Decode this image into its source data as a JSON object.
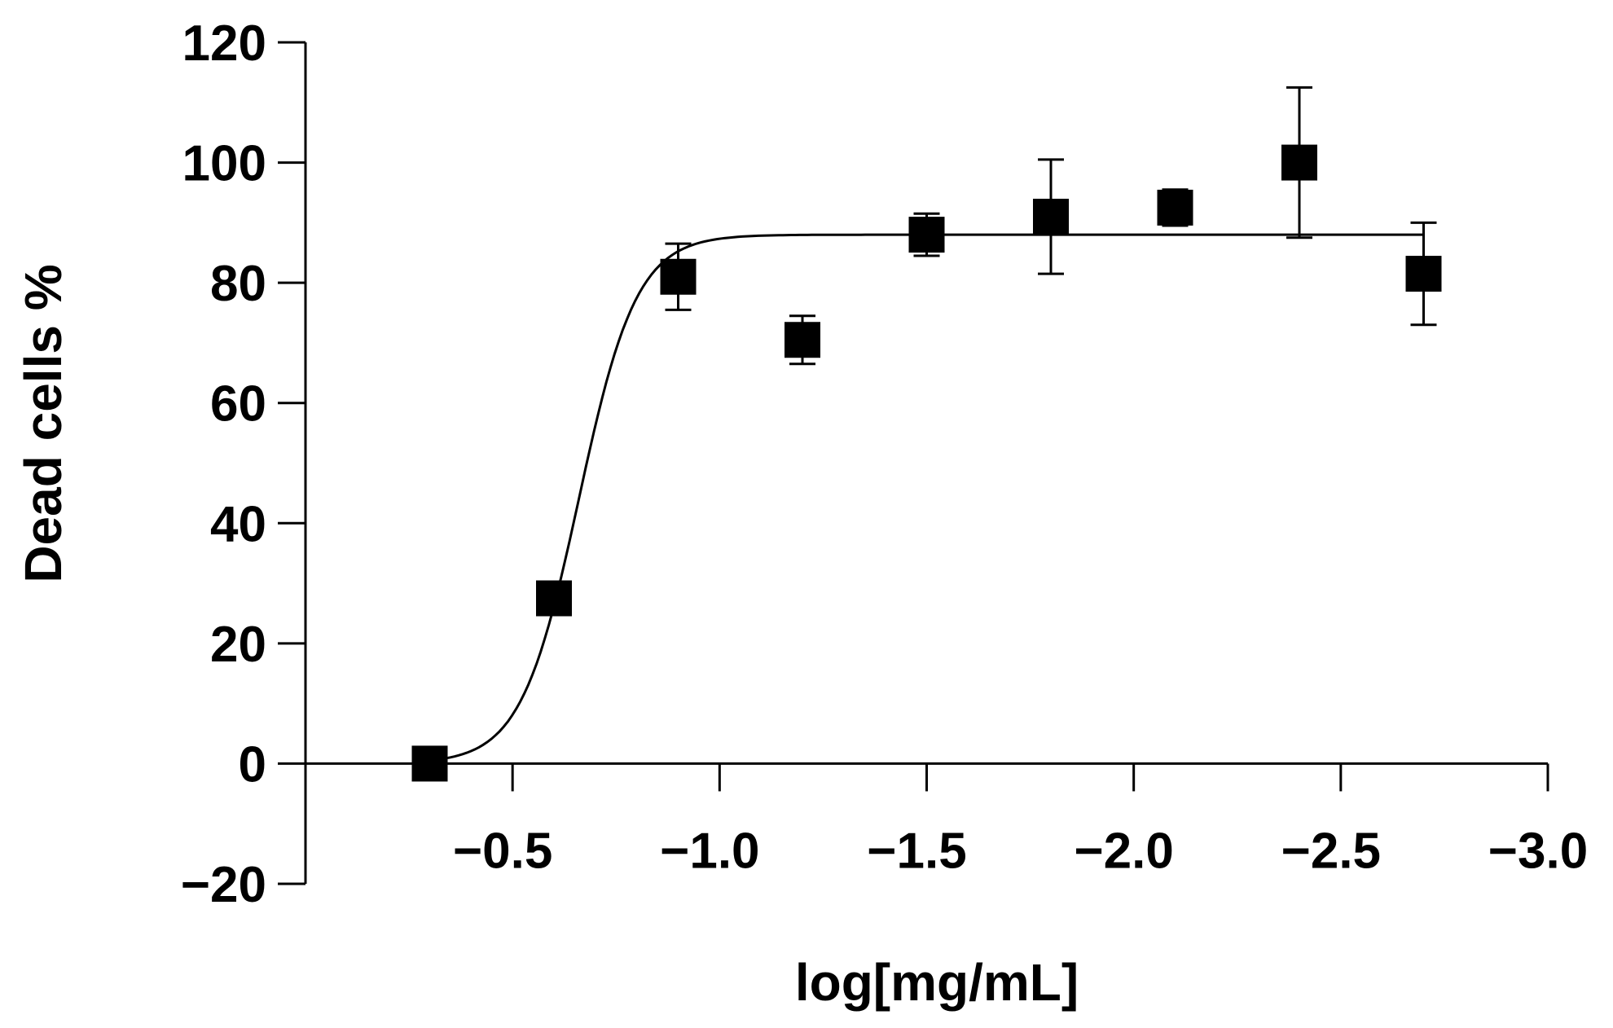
{
  "chart_data": {
    "type": "scatter",
    "xlabel": "log[mg/mL]",
    "ylabel": "Dead cells %",
    "xlim": [
      0.0,
      -3.0
    ],
    "ylim": [
      -20,
      120
    ],
    "x_reversed": true,
    "x_ticks": [
      -0.5,
      -1.0,
      -1.5,
      -2.0,
      -2.5,
      -3.0
    ],
    "x_tick_labels": [
      "−0.5",
      "−1.0",
      "−1.5",
      "−2.0",
      "−2.5",
      "−3.0"
    ],
    "y_ticks": [
      -20,
      0,
      20,
      40,
      60,
      80,
      100,
      120
    ],
    "y_tick_labels": [
      "−20",
      "0",
      "20",
      "40",
      "60",
      "80",
      "100",
      "120"
    ],
    "grid": false,
    "points": [
      {
        "x": -0.3,
        "y": 0,
        "err": 0
      },
      {
        "x": -0.6,
        "y": 27.5,
        "err": 1.5
      },
      {
        "x": -0.9,
        "y": 81,
        "err": 5.5
      },
      {
        "x": -1.2,
        "y": 70.5,
        "err": 4
      },
      {
        "x": -1.5,
        "y": 88,
        "err": 3.5
      },
      {
        "x": -1.8,
        "y": 91,
        "err": 9.5
      },
      {
        "x": -2.1,
        "y": 92.5,
        "err": 3
      },
      {
        "x": -2.4,
        "y": 100,
        "err": 12.5
      },
      {
        "x": -2.7,
        "y": 81.5,
        "err": 8.5
      }
    ],
    "fit": {
      "type": "sigmoid",
      "bottom": 0,
      "top": 88,
      "x50": -0.66,
      "slope": 0.07,
      "x_range": [
        -0.32,
        -2.7
      ]
    }
  }
}
